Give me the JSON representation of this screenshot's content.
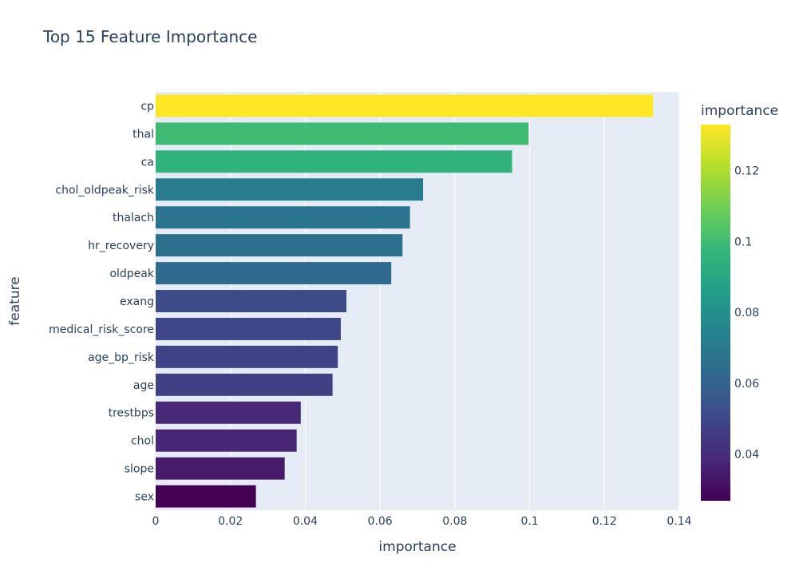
{
  "chart_data": {
    "type": "bar",
    "orientation": "horizontal",
    "title": "Top 15 Feature Importance",
    "xlabel": "importance",
    "ylabel": "feature",
    "xlim": [
      0,
      0.14
    ],
    "x_ticks": [
      "0",
      "0.02",
      "0.04",
      "0.06",
      "0.08",
      "0.1",
      "0.12",
      "0.14"
    ],
    "categories": [
      "cp",
      "thal",
      "ca",
      "chol_oldpeak_risk",
      "thalach",
      "hr_recovery",
      "oldpeak",
      "exang",
      "medical_risk_score",
      "age_bp_risk",
      "age",
      "trestbps",
      "chol",
      "slope",
      "sex"
    ],
    "values": [
      0.133,
      0.0997,
      0.0953,
      0.0715,
      0.068,
      0.066,
      0.063,
      0.051,
      0.0495,
      0.0487,
      0.0473,
      0.0388,
      0.0377,
      0.0345,
      0.0268
    ],
    "colorscale": "viridis",
    "colorbar": {
      "title": "importance",
      "range": [
        0.0268,
        0.133
      ],
      "ticks": [
        "0.04",
        "0.06",
        "0.08",
        "0.1",
        "0.12"
      ]
    },
    "grid": true,
    "plot_bgcolor": "#e5ecf6"
  }
}
